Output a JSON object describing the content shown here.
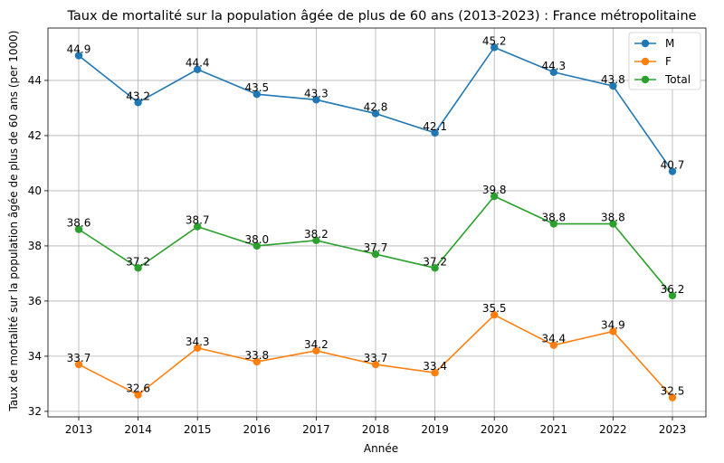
{
  "chart_data": {
    "type": "line",
    "title": "Taux de mortalité sur la population âgée de plus de 60 ans (2013-2023) : France métropolitaine",
    "xlabel": "Année",
    "ylabel": "Taux de mortalité sur la population âgée de plus de 60 ans (per 1000)",
    "x": [
      "2013",
      "2014",
      "2015",
      "2016",
      "2017",
      "2018",
      "2019",
      "2020",
      "2021",
      "2022",
      "2023"
    ],
    "ylim": [
      31.8,
      45.9
    ],
    "yticks": [
      "32",
      "34",
      "36",
      "38",
      "40",
      "42",
      "44"
    ],
    "grid": true,
    "legend_position": "top-right",
    "series": [
      {
        "name": "M",
        "color": "#1f77b4",
        "values": [
          44.9,
          43.2,
          44.4,
          43.5,
          43.3,
          42.8,
          42.1,
          45.2,
          44.3,
          43.8,
          40.7
        ],
        "labels": [
          "44.9",
          "43.2",
          "44.4",
          "43.5",
          "43.3",
          "42.8",
          "42.1",
          "45.2",
          "44.3",
          "43.8",
          "40.7"
        ]
      },
      {
        "name": "F",
        "color": "#ff7f0e",
        "values": [
          33.7,
          32.6,
          34.3,
          33.8,
          34.2,
          33.7,
          33.4,
          35.5,
          34.4,
          34.9,
          32.5
        ],
        "labels": [
          "33.7",
          "32.6",
          "34.3",
          "33.8",
          "34.2",
          "33.7",
          "33.4",
          "35.5",
          "34.4",
          "34.9",
          "32.5"
        ]
      },
      {
        "name": "Total",
        "color": "#2ca02c",
        "values": [
          38.6,
          37.2,
          38.7,
          38.0,
          38.2,
          37.7,
          37.2,
          39.8,
          38.8,
          38.8,
          36.2
        ],
        "labels": [
          "38.6",
          "37.2",
          "38.7",
          "38.0",
          "38.2",
          "37.7",
          "37.2",
          "39.8",
          "38.8",
          "38.8",
          "36.2"
        ]
      }
    ]
  }
}
